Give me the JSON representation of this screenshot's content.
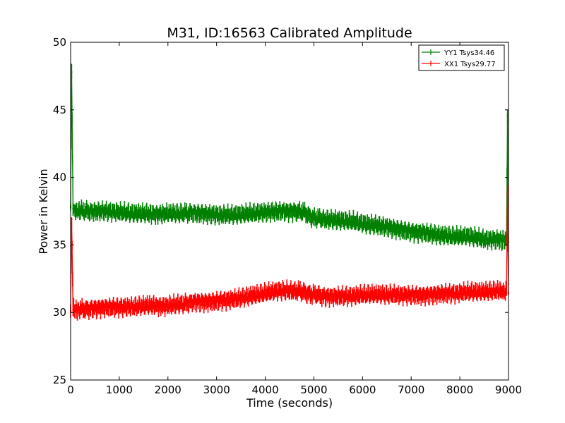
{
  "chart_data": {
    "type": "line",
    "title": "M31, ID:16563 Calibrated Amplitude",
    "xlabel": "Time (seconds)",
    "ylabel": "Power in Kelvin",
    "xlim": [
      0,
      9000
    ],
    "ylim": [
      25,
      50
    ],
    "xticks": [
      "0",
      "1000",
      "2000",
      "3000",
      "4000",
      "5000",
      "6000",
      "7000",
      "8000",
      "9000"
    ],
    "yticks": [
      "25",
      "30",
      "35",
      "40",
      "45",
      "50"
    ],
    "grid": false,
    "legend_position": "upper-right",
    "series": [
      {
        "name": "YY1 Tsys34.46",
        "color": "#008000",
        "x": [
          0,
          20,
          50,
          100,
          200,
          400,
          700,
          1000,
          1300,
          1600,
          2000,
          2300,
          2500,
          2800,
          3100,
          3400,
          3700,
          4000,
          4300,
          4600,
          4800,
          5000,
          5200,
          5500,
          5800,
          6100,
          6400,
          6700,
          7000,
          7300,
          7600,
          7900,
          8200,
          8500,
          8800,
          8960,
          8980,
          9000
        ],
        "y": [
          37.8,
          47.8,
          37.7,
          37.5,
          37.5,
          37.5,
          37.5,
          37.4,
          37.3,
          37.3,
          37.3,
          37.3,
          37.4,
          37.3,
          37.2,
          37.2,
          37.3,
          37.4,
          37.5,
          37.5,
          37.4,
          37.0,
          36.9,
          36.8,
          36.7,
          36.5,
          36.4,
          36.2,
          36.0,
          35.9,
          35.7,
          35.6,
          35.6,
          35.4,
          35.4,
          35.3,
          44.6,
          35.2
        ]
      },
      {
        "name": "XX1 Tsys29.77",
        "color": "#ff0000",
        "x": [
          0,
          20,
          50,
          100,
          200,
          400,
          700,
          1000,
          1300,
          1600,
          2000,
          2300,
          2500,
          2800,
          3100,
          3400,
          3700,
          4000,
          4300,
          4600,
          4800,
          5000,
          5200,
          5500,
          5800,
          6100,
          6400,
          6700,
          7000,
          7300,
          7600,
          7900,
          8200,
          8500,
          8800,
          8960,
          8980,
          9000
        ],
        "y": [
          30.1,
          36.9,
          30.2,
          30.2,
          30.2,
          30.3,
          30.4,
          30.4,
          30.4,
          30.5,
          30.5,
          30.6,
          30.8,
          30.8,
          30.9,
          31.0,
          31.2,
          31.4,
          31.6,
          31.6,
          31.5,
          31.3,
          31.2,
          31.2,
          31.2,
          31.3,
          31.3,
          31.3,
          31.3,
          31.3,
          31.4,
          31.4,
          31.5,
          31.5,
          31.6,
          31.5,
          38.8,
          31.4
        ]
      }
    ]
  }
}
